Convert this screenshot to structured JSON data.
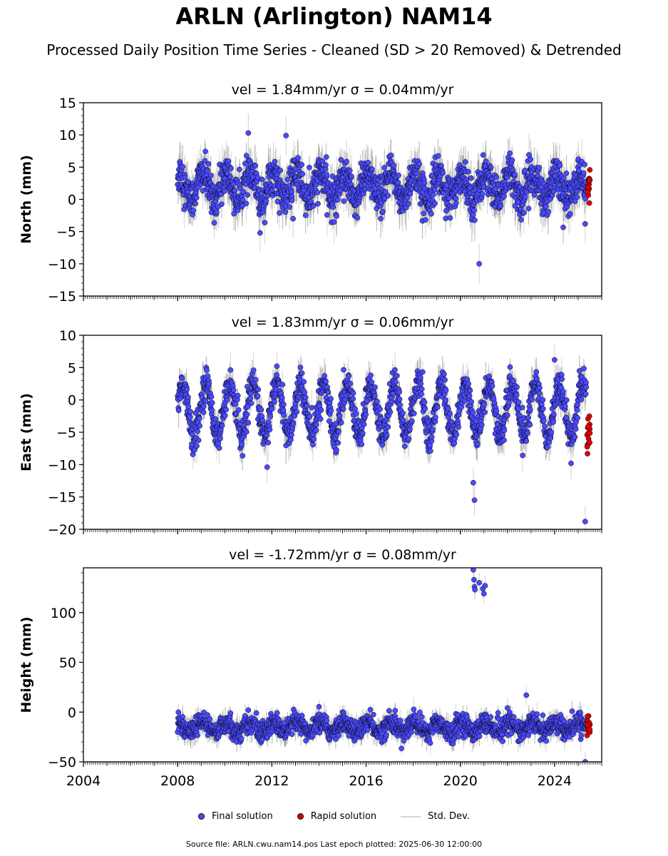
{
  "title": "ARLN (Arlington) NAM14",
  "subtitle": "Processed Daily Position Time Series - Cleaned (SD > 20 Removed) & Detrended",
  "legend": {
    "final_label": "Final solution",
    "rapid_label": "Rapid solution",
    "sd_label": "Std. Dev."
  },
  "footer": "Source file: ARLN.cwu.nam14.pos  Last epoch plotted: 2025-06-30 12:00:00",
  "colors": {
    "final": "#4a4aff",
    "rapid": "#e00000",
    "sd": "#d0d0d0",
    "sd_dense": "#555555"
  },
  "chart_data": [
    {
      "type": "scatter",
      "panel": "north",
      "title": "vel = 1.84mm/yr   σ = 0.04mm/yr",
      "ylabel": "North (mm)",
      "xlim": [
        2004,
        2026
      ],
      "ylim": [
        -15,
        15
      ],
      "yticks": [
        -15,
        -10,
        -5,
        0,
        5,
        10,
        15
      ],
      "ytick_labels": [
        "−15",
        "−10",
        "−5",
        "0",
        "5",
        "10",
        "15"
      ],
      "xticks": [
        2004,
        2008,
        2012,
        2016,
        2020,
        2024
      ],
      "show_x_labels": false,
      "data_start": 2008.0,
      "final_end": 2025.35,
      "rapid_start": 2025.38,
      "rapid_end": 2025.5,
      "level": 2.0,
      "annual_amplitude": 2.0,
      "noise": 1.5,
      "outliers": [
        [
          2011.0,
          10.3
        ],
        [
          2012.6,
          9.9
        ],
        [
          2011.5,
          -5.2
        ],
        [
          2020.8,
          -10.0
        ],
        [
          2012.9,
          -3.0
        ],
        [
          2025.3,
          -3.8
        ]
      ]
    },
    {
      "type": "scatter",
      "panel": "east",
      "title": "vel = 1.83mm/yr   σ = 0.06mm/yr",
      "ylabel": "East (mm)",
      "xlim": [
        2004,
        2026
      ],
      "ylim": [
        -20,
        10
      ],
      "yticks": [
        -20,
        -15,
        -10,
        -5,
        0,
        5,
        10
      ],
      "ytick_labels": [
        "−20",
        "−15",
        "−10",
        "−5",
        "0",
        "5",
        "10"
      ],
      "xticks": [
        2004,
        2008,
        2012,
        2016,
        2020,
        2024
      ],
      "show_x_labels": false,
      "data_start": 2008.0,
      "final_end": 2025.35,
      "rapid_start": 2025.38,
      "rapid_end": 2025.5,
      "level": -1.5,
      "annual_amplitude": 4.0,
      "noise": 1.2,
      "outliers": [
        [
          2011.8,
          -10.4
        ],
        [
          2020.55,
          -12.8
        ],
        [
          2020.6,
          -15.5
        ],
        [
          2024.0,
          6.2
        ],
        [
          2024.7,
          -9.8
        ],
        [
          2025.3,
          -18.8
        ]
      ]
    },
    {
      "type": "scatter",
      "panel": "height",
      "title": "vel = -1.72mm/yr   σ = 0.08mm/yr",
      "ylabel": "Height (mm)",
      "xlim": [
        2004,
        2026
      ],
      "ylim": [
        -50,
        145
      ],
      "yticks": [
        -50,
        0,
        50,
        100
      ],
      "ytick_labels": [
        "−50",
        "0",
        "50",
        "100"
      ],
      "xticks": [
        2004,
        2008,
        2012,
        2016,
        2020,
        2024
      ],
      "xtick_labels": [
        "2004",
        "2008",
        "2012",
        "2016",
        "2020",
        "2024"
      ],
      "show_x_labels": true,
      "data_start": 2008.0,
      "final_end": 2025.35,
      "rapid_start": 2025.38,
      "rapid_end": 2025.5,
      "level": -15.0,
      "annual_amplitude": 5.0,
      "noise": 5.0,
      "outliers": [
        [
          2020.55,
          143
        ],
        [
          2020.58,
          133
        ],
        [
          2020.6,
          126
        ],
        [
          2020.62,
          123
        ],
        [
          2020.8,
          130
        ],
        [
          2020.95,
          124
        ],
        [
          2021.0,
          119
        ],
        [
          2021.05,
          127
        ],
        [
          2022.8,
          17
        ],
        [
          2025.3,
          -50
        ]
      ]
    }
  ]
}
